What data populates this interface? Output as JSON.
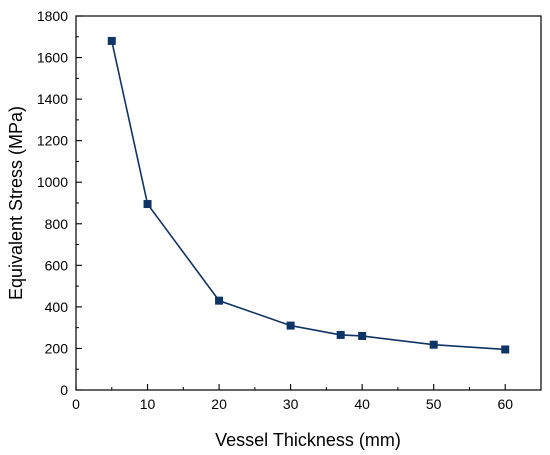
{
  "chart_data": {
    "type": "line",
    "title": "",
    "xlabel": "Vessel Thickness (mm)",
    "ylabel": "Equivalent Stress (MPa)",
    "xlim": [
      0,
      65
    ],
    "ylim": [
      0,
      1800
    ],
    "xticks": [
      0,
      10,
      20,
      30,
      40,
      50,
      60
    ],
    "yticks": [
      0,
      200,
      400,
      600,
      800,
      1000,
      1200,
      1400,
      1600,
      1800
    ],
    "grid": false,
    "legend": "none",
    "series": [
      {
        "color": "#0f3466",
        "marker": "square",
        "x": [
          5,
          10,
          20,
          30,
          37,
          40,
          50,
          60
        ],
        "y": [
          1680,
          895,
          430,
          310,
          265,
          260,
          218,
          195
        ]
      }
    ]
  }
}
